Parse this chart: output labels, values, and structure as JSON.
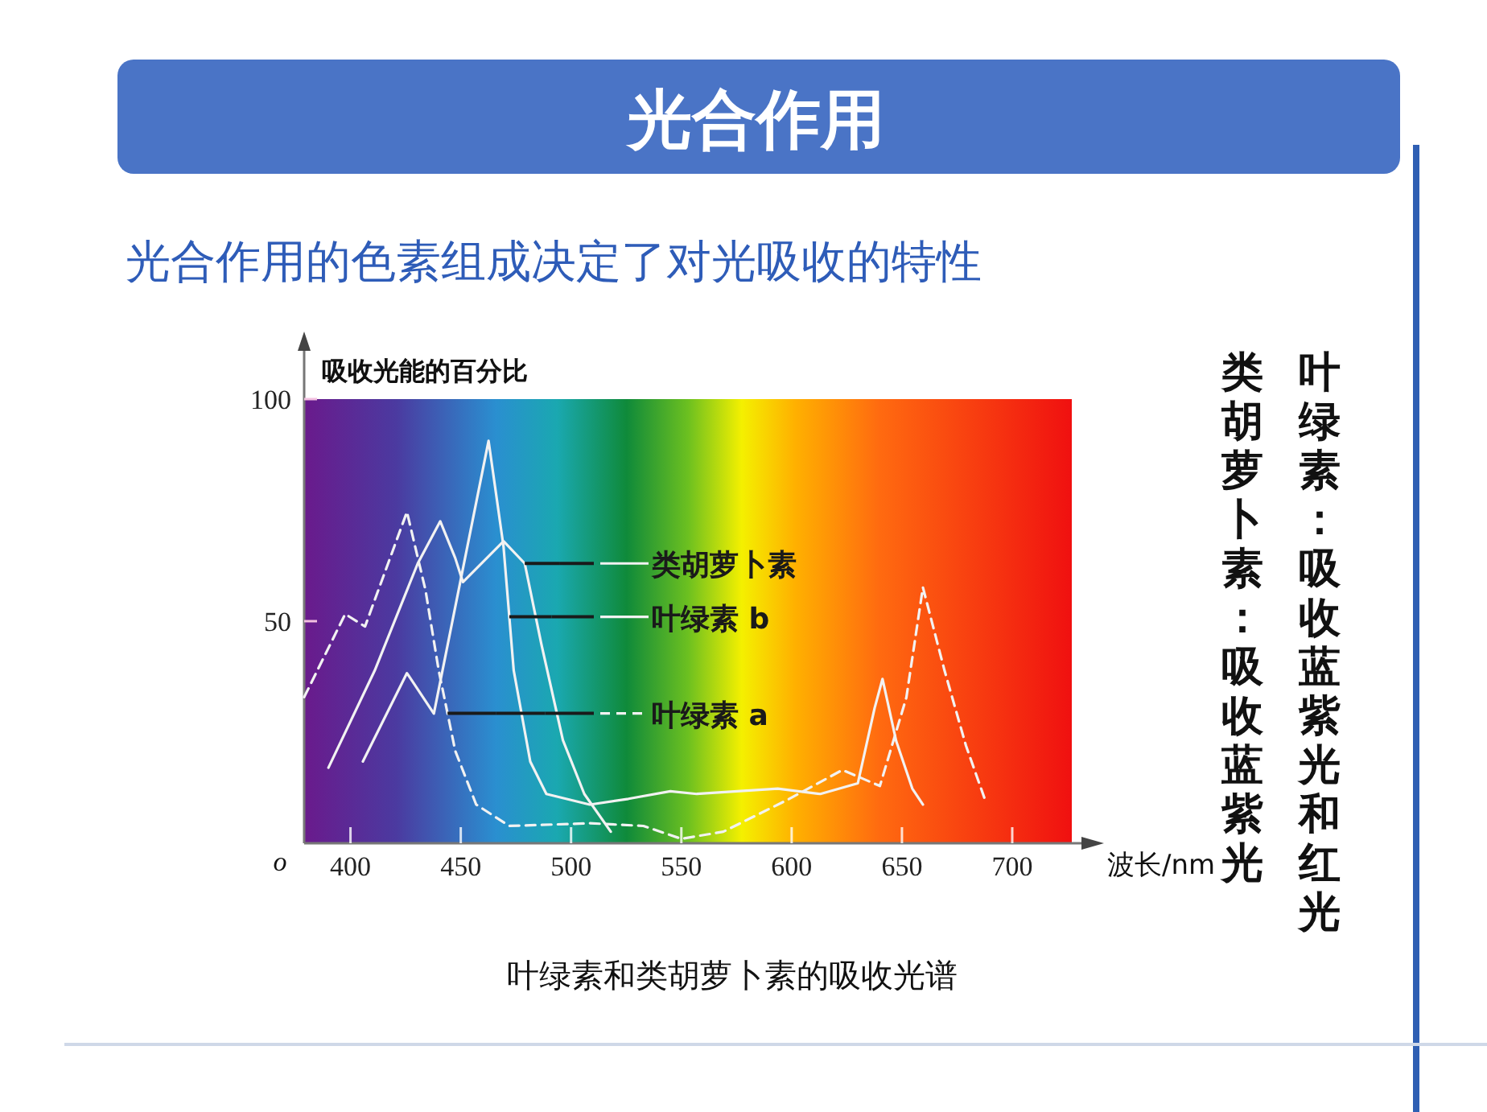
{
  "chart_data": {
    "type": "line",
    "title": "光合作用",
    "subtitle": "光合作用的色素组成决定了对光吸收的特性",
    "ylabel": "吸收光能的百分比",
    "xlabel": "波长/nm",
    "xlim": [
      379,
      727
    ],
    "xticks": [
      400,
      450,
      500,
      550,
      600,
      650,
      700
    ],
    "ylim": [
      0,
      100
    ],
    "yticks": [
      50,
      100
    ],
    "grid": false,
    "legend": "center",
    "series": [
      {
        "name": "类胡萝卜素",
        "color": "#f2f2f2",
        "line_style": "solid",
        "x": [
          390,
          411,
          430.5,
          440.7,
          447.5,
          451,
          469.4,
          479,
          486.5,
          496.3,
          506,
          518
        ],
        "values": [
          17,
          38.9,
          63,
          72.5,
          64.2,
          58.8,
          68,
          63,
          44.9,
          23.2,
          11.1,
          2.6
        ]
      },
      {
        "name": "叶绿素 b",
        "color": "#f2f2f2",
        "line_style": "solid",
        "x": [
          405.6,
          425.6,
          437.8,
          462.6,
          469.4,
          474,
          481.5,
          488.8,
          508.5,
          526,
          545,
          557,
          593.7,
          613,
          630,
          637.6,
          641.2,
          647.4,
          654.7,
          659.5
        ],
        "values": [
          18.4,
          38.3,
          29.2,
          90.6,
          66.7,
          38.9,
          18.4,
          11.1,
          8.7,
          10,
          11.7,
          11.1,
          12.3,
          11.1,
          13.5,
          30.4,
          37,
          23,
          12.3,
          8.7
        ]
      },
      {
        "name": "叶绿素 a",
        "color": "#f2f2f2",
        "line_style": "dashed",
        "x": [
          379,
          397.6,
          406.6,
          425.6,
          434,
          440,
          447.5,
          457,
          472,
          508.5,
          532.8,
          550,
          569,
          598.6,
          623,
          640,
          652,
          659.5,
          669.3,
          679,
          687.6
        ],
        "values": [
          32.9,
          51.6,
          48.8,
          74.6,
          57,
          38.9,
          20.8,
          8.7,
          3.9,
          4.5,
          3.9,
          1,
          2.6,
          9.9,
          16.5,
          12.9,
          32.8,
          57.6,
          38.9,
          22,
          9.9
        ]
      }
    ],
    "annotations": [
      "o",
      "叶绿素和类胡萝卜素的吸收光谱",
      "叶绿素：吸收蓝紫光和红光",
      "类胡萝卜素：吸收蓝紫光"
    ]
  }
}
